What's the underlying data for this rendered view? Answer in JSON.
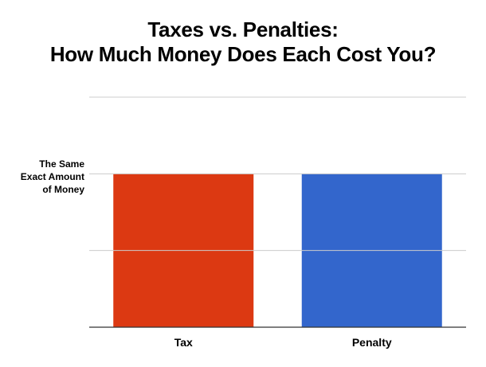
{
  "chart_data": {
    "type": "bar",
    "title": [
      "Taxes vs. Penalties:",
      "How Much Money Does Each Cost You?"
    ],
    "xlabel": "",
    "ylabel": "",
    "categories": [
      "Tax",
      "Penalty"
    ],
    "values": [
      2,
      2
    ],
    "colors": [
      "#dc3912",
      "#3366cc"
    ],
    "ylim": [
      0,
      3
    ],
    "yticks": [
      0,
      1,
      2,
      3
    ],
    "ytick_labels": [
      {
        "value": 2,
        "lines": [
          "The Same",
          "Exact Amount",
          "of Money"
        ]
      }
    ],
    "grid": true,
    "legend": "none"
  }
}
